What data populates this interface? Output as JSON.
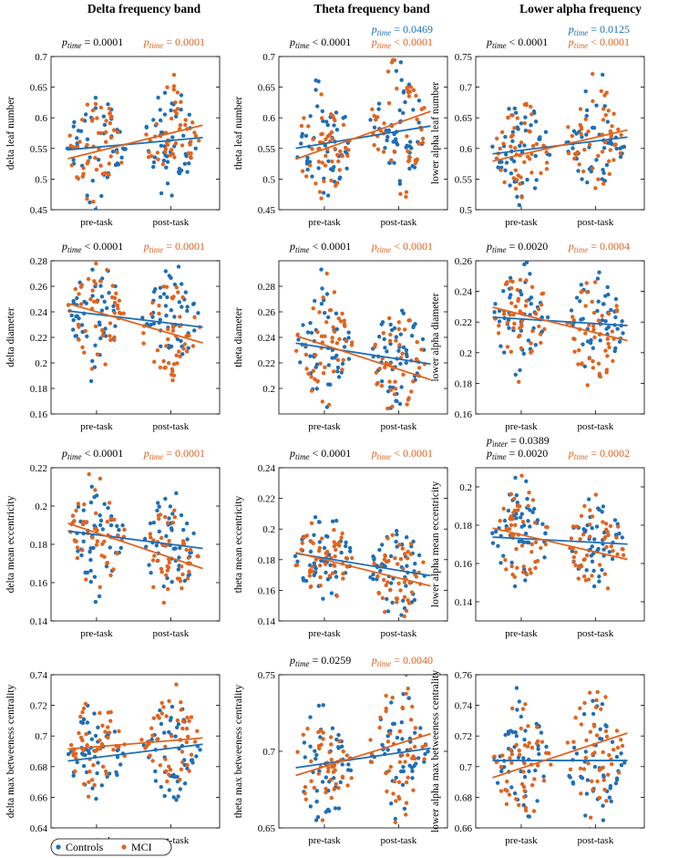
{
  "colors": {
    "controls": "#1f6fb5",
    "mci": "#e0641f",
    "black": "#000000"
  },
  "column_titles": [
    "Delta frequency band",
    "Theta frequency band",
    "Lower alpha frequency"
  ],
  "legend": {
    "controls": "Controls",
    "mci": "MCI"
  },
  "chart_data": [
    {
      "type": "scatter",
      "ylabel": "delta leaf number",
      "categories": [
        "pre-task",
        "post-task"
      ],
      "ylim": [
        0.45,
        0.7
      ],
      "yticks": [
        "0.45",
        "0.5",
        "0.55",
        "0.6",
        "0.65",
        "0.7"
      ],
      "pvals": [
        {
          "sub": "time",
          "text": "= 0.0001",
          "color": "black"
        },
        {
          "sub": "time",
          "text": "= 0.0001",
          "color": "mci"
        }
      ],
      "fit": {
        "controls": [
          0.552,
          0.563
        ],
        "mci": [
          0.545,
          0.575
        ]
      },
      "center": {
        "controls": [
          0.555,
          0.565
        ],
        "mci": [
          0.548,
          0.572
        ]
      },
      "spread": 0.04
    },
    {
      "type": "scatter",
      "ylabel": "theta leaf number",
      "categories": [
        "pre-task",
        "post-task"
      ],
      "ylim": [
        0.45,
        0.7
      ],
      "yticks": [
        "0.45",
        "0.5",
        "0.55",
        "0.6",
        "0.65",
        "0.7"
      ],
      "pvals": [
        {
          "sub": "time",
          "text": "= 0.0469",
          "color": "controls"
        },
        {
          "sub": "time",
          "text": "< 0.0001",
          "color": "black"
        },
        {
          "sub": "time",
          "text": "< 0.0001",
          "color": "mci"
        }
      ],
      "fit": {
        "controls": [
          0.558,
          0.578
        ],
        "mci": [
          0.549,
          0.592
        ]
      },
      "center": {
        "controls": [
          0.56,
          0.578
        ],
        "mci": [
          0.552,
          0.588
        ]
      },
      "spread": 0.045
    },
    {
      "type": "scatter",
      "ylabel": "lower alpha leaf number",
      "categories": [
        "pre-task",
        "post-task"
      ],
      "ylim": [
        0.5,
        0.75
      ],
      "yticks": [
        "0.5",
        "0.55",
        "0.6",
        "0.65",
        "0.7",
        "0.75"
      ],
      "pvals": [
        {
          "sub": "time",
          "text": "= 0.0125",
          "color": "controls"
        },
        {
          "sub": "time",
          "text": "< 0.0001",
          "color": "black"
        },
        {
          "sub": "time",
          "text": "< 0.0001",
          "color": "mci"
        }
      ],
      "fit": {
        "controls": [
          0.597,
          0.612
        ],
        "mci": [
          0.59,
          0.618
        ]
      },
      "center": {
        "controls": [
          0.6,
          0.612
        ],
        "mci": [
          0.593,
          0.615
        ]
      },
      "spread": 0.04
    },
    {
      "type": "scatter",
      "ylabel": "delta diameter",
      "categories": [
        "pre-task",
        "post-task"
      ],
      "ylim": [
        0.16,
        0.28
      ],
      "yticks": [
        "0.16",
        "0.18",
        "0.2",
        "0.22",
        "0.24",
        "0.26",
        "0.28"
      ],
      "pvals": [
        {
          "sub": "time",
          "text": "< 0.0001",
          "color": "black"
        },
        {
          "sub": "time",
          "text": "= 0.0001",
          "color": "mci"
        }
      ],
      "fit": {
        "controls": [
          0.238,
          0.231
        ],
        "mci": [
          0.24,
          0.223
        ]
      },
      "center": {
        "controls": [
          0.238,
          0.231
        ],
        "mci": [
          0.239,
          0.225
        ]
      },
      "spread": 0.018
    },
    {
      "type": "scatter",
      "ylabel": "theta diameter",
      "categories": [
        "pre-task",
        "post-task"
      ],
      "ylim": [
        0.18,
        0.3
      ],
      "yticks": [
        "0.2",
        "0.22",
        "0.24",
        "0.26",
        "0.28"
      ],
      "pvals": [
        {
          "sub": "time",
          "text": "< 0.0001",
          "color": "black"
        },
        {
          "sub": "time",
          "text": "< 0.0001",
          "color": "mci"
        }
      ],
      "fit": {
        "controls": [
          0.232,
          0.223
        ],
        "mci": [
          0.234,
          0.215
        ]
      },
      "center": {
        "controls": [
          0.232,
          0.224
        ],
        "mci": [
          0.233,
          0.217
        ]
      },
      "spread": 0.02
    },
    {
      "type": "scatter",
      "ylabel": "lower alpha diameter",
      "categories": [
        "pre-task",
        "post-task"
      ],
      "ylim": [
        0.16,
        0.26
      ],
      "yticks": [
        "0.16",
        "0.18",
        "0.2",
        "0.22",
        "0.24",
        "0.26"
      ],
      "pvals": [
        {
          "sub": "time",
          "text": "= 0.0020",
          "color": "black"
        },
        {
          "sub": "time",
          "text": "= 0.0004",
          "color": "mci"
        }
      ],
      "fit": {
        "controls": [
          0.222,
          0.219
        ],
        "mci": [
          0.225,
          0.213
        ]
      },
      "center": {
        "controls": [
          0.222,
          0.219
        ],
        "mci": [
          0.224,
          0.214
        ]
      },
      "spread": 0.016
    },
    {
      "type": "scatter",
      "ylabel": "delta mean eccentricity",
      "categories": [
        "pre-task",
        "post-task"
      ],
      "ylim": [
        0.14,
        0.22
      ],
      "yticks": [
        "0.14",
        "0.16",
        "0.18",
        "0.2",
        "0.22"
      ],
      "pvals": [
        {
          "sub": "time",
          "text": "< 0.0001",
          "color": "black"
        },
        {
          "sub": "time",
          "text": "= 0.0001",
          "color": "mci"
        }
      ],
      "fit": {
        "controls": [
          0.185,
          0.18
        ],
        "mci": [
          0.186,
          0.173
        ]
      },
      "center": {
        "controls": [
          0.184,
          0.18
        ],
        "mci": [
          0.185,
          0.175
        ]
      },
      "spread": 0.013
    },
    {
      "type": "scatter",
      "ylabel": "theta mean eccentricity",
      "categories": [
        "pre-task",
        "post-task"
      ],
      "ylim": [
        0.14,
        0.24
      ],
      "yticks": [
        "0.14",
        "0.16",
        "0.18",
        "0.2",
        "0.22",
        "0.24"
      ],
      "pvals": [
        {
          "sub": "time",
          "text": "< 0.0001",
          "color": "black"
        },
        {
          "sub": "time",
          "text": "< 0.0001",
          "color": "mci"
        }
      ],
      "fit": {
        "controls": [
          0.181,
          0.173
        ],
        "mci": [
          0.18,
          0.168
        ]
      },
      "center": {
        "controls": [
          0.18,
          0.173
        ],
        "mci": [
          0.179,
          0.169
        ]
      },
      "spread": 0.014
    },
    {
      "type": "scatter",
      "ylabel": "lower alpha mean eccentricity",
      "categories": [
        "pre-task",
        "post-task"
      ],
      "ylim": [
        0.13,
        0.21
      ],
      "yticks": [
        "0.14",
        "0.16",
        "0.18",
        "0.2"
      ],
      "pvals": [
        {
          "sub": "inter",
          "text": "= 0.0389",
          "color": "black"
        },
        {
          "sub": "time",
          "text": "= 0.0020",
          "color": "black"
        },
        {
          "sub": "time",
          "text": "= 0.0002",
          "color": "mci"
        }
      ],
      "fit": {
        "controls": [
          0.173,
          0.171
        ],
        "mci": [
          0.175,
          0.166
        ]
      },
      "center": {
        "controls": [
          0.173,
          0.171
        ],
        "mci": [
          0.174,
          0.168
        ]
      },
      "spread": 0.012
    },
    {
      "type": "scatter",
      "ylabel": "delta max betweeness centrality",
      "categories": [
        "pre-task",
        "post-task"
      ],
      "ylim": [
        0.64,
        0.74
      ],
      "yticks": [
        "0.64",
        "0.66",
        "0.68",
        "0.7",
        "0.72",
        "0.74"
      ],
      "pvals": [],
      "fit": {
        "controls": [
          0.686,
          0.692
        ],
        "mci": [
          0.693,
          0.697
        ]
      },
      "center": {
        "controls": [
          0.687,
          0.692
        ],
        "mci": [
          0.692,
          0.696
        ]
      },
      "spread": 0.015
    },
    {
      "type": "scatter",
      "ylabel": "theta max betweeness centrality",
      "categories": [
        "pre-task",
        "post-task"
      ],
      "ylim": [
        0.65,
        0.75
      ],
      "yticks": [
        "0.65",
        "0.7",
        "0.75"
      ],
      "pvals": [
        {
          "sub": "time",
          "text": "= 0.0259",
          "color": "black"
        },
        {
          "sub": "time",
          "text": "= 0.0040",
          "color": "mci"
        }
      ],
      "fit": {
        "controls": [
          0.692,
          0.699
        ],
        "mci": [
          0.69,
          0.705
        ]
      },
      "center": {
        "controls": [
          0.692,
          0.699
        ],
        "mci": [
          0.691,
          0.703
        ]
      },
      "spread": 0.02
    },
    {
      "type": "scatter",
      "ylabel": "lower alpha max betweeness centrality",
      "categories": [
        "pre-task",
        "post-task"
      ],
      "ylim": [
        0.66,
        0.76
      ],
      "yticks": [
        "0.66",
        "0.68",
        "0.7",
        "0.72",
        "0.74",
        "0.76"
      ],
      "pvals": [],
      "fit": {
        "controls": [
          0.704,
          0.704
        ],
        "mci": [
          0.699,
          0.715
        ]
      },
      "center": {
        "controls": [
          0.704,
          0.704
        ],
        "mci": [
          0.701,
          0.711
        ]
      },
      "spread": 0.018
    }
  ]
}
